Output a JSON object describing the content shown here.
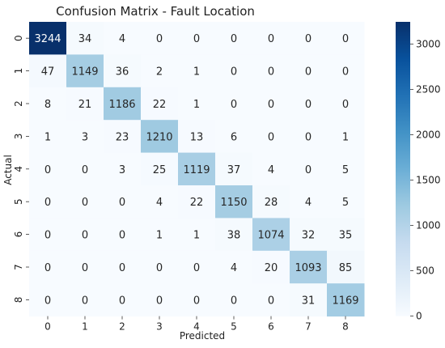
{
  "chart_data": {
    "type": "heatmap",
    "title": "Confusion Matrix - Fault Location",
    "xlabel": "Predicted",
    "ylabel": "Actual",
    "x_categories": [
      "0",
      "1",
      "2",
      "3",
      "4",
      "5",
      "6",
      "7",
      "8"
    ],
    "y_categories": [
      "0",
      "1",
      "2",
      "3",
      "4",
      "5",
      "6",
      "7",
      "8"
    ],
    "values": [
      [
        3244,
        34,
        4,
        0,
        0,
        0,
        0,
        0,
        0
      ],
      [
        47,
        1149,
        36,
        2,
        1,
        0,
        0,
        0,
        0
      ],
      [
        8,
        21,
        1186,
        22,
        1,
        0,
        0,
        0,
        0
      ],
      [
        1,
        3,
        23,
        1210,
        13,
        6,
        0,
        0,
        1
      ],
      [
        0,
        0,
        3,
        25,
        1119,
        37,
        4,
        0,
        5
      ],
      [
        0,
        0,
        0,
        4,
        22,
        1150,
        28,
        4,
        5
      ],
      [
        0,
        0,
        0,
        1,
        1,
        38,
        1074,
        32,
        35
      ],
      [
        0,
        0,
        0,
        0,
        0,
        4,
        20,
        1093,
        85
      ],
      [
        0,
        0,
        0,
        0,
        0,
        0,
        0,
        31,
        1169
      ]
    ],
    "colormap": "Blues",
    "color_range": [
      0,
      3244
    ],
    "colorbar_ticks": [
      0,
      500,
      1000,
      1500,
      2000,
      2500,
      3000
    ],
    "colors": {
      "low": "#f7fbff",
      "high": "#08306b"
    }
  }
}
